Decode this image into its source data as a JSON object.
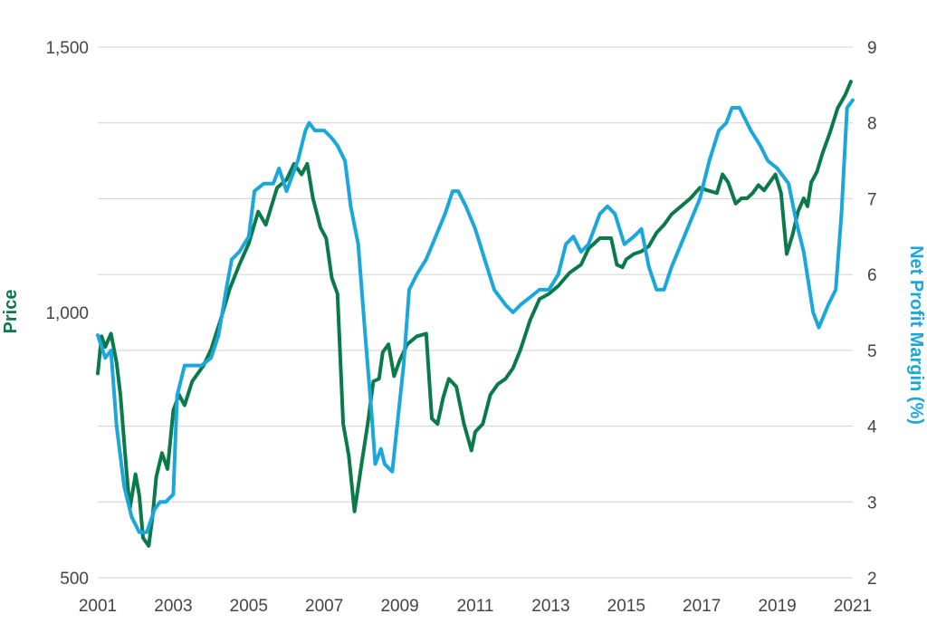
{
  "chart_data": {
    "type": "line",
    "title": "",
    "x_ticks": [
      "2001",
      "2003",
      "2005",
      "2007",
      "2009",
      "2011",
      "2013",
      "2015",
      "2017",
      "2019",
      "2021"
    ],
    "xlim": [
      2001,
      2021
    ],
    "left_axis": {
      "label": "Price",
      "ticks": [
        "500",
        "1,000",
        "1,500"
      ],
      "tick_values": [
        500,
        1000,
        1500
      ],
      "range": [
        500,
        1500
      ],
      "color": "#0b7a4b"
    },
    "right_axis": {
      "label": "Net Profit Margin (%)",
      "ticks": [
        "2",
        "3",
        "4",
        "5",
        "6",
        "7",
        "8",
        "9"
      ],
      "tick_values": [
        2,
        3,
        4,
        5,
        6,
        7,
        8,
        9
      ],
      "range": [
        2,
        9
      ],
      "color": "#1aa7dc"
    },
    "grid": "horizontal",
    "series": [
      {
        "axis": "left",
        "color": "#0b7a4b",
        "x": [
          2001.0,
          2001.1,
          2001.2,
          2001.35,
          2001.5,
          2001.6,
          2001.75,
          2001.85,
          2002.0,
          2002.1,
          2002.2,
          2002.35,
          2002.45,
          2002.55,
          2002.7,
          2002.85,
          2003.0,
          2003.15,
          2003.3,
          2003.5,
          2003.8,
          2004.0,
          2004.25,
          2004.5,
          2004.75,
          2005.0,
          2005.25,
          2005.45,
          2005.6,
          2005.75,
          2006.0,
          2006.2,
          2006.4,
          2006.55,
          2006.7,
          2006.9,
          2007.05,
          2007.2,
          2007.35,
          2007.5,
          2007.65,
          2007.8,
          2008.0,
          2008.15,
          2008.3,
          2008.45,
          2008.55,
          2008.7,
          2008.85,
          2009.0,
          2009.2,
          2009.45,
          2009.7,
          2009.85,
          2010.0,
          2010.15,
          2010.3,
          2010.5,
          2010.7,
          2010.9,
          2011.0,
          2011.2,
          2011.4,
          2011.6,
          2011.8,
          2012.0,
          2012.2,
          2012.45,
          2012.7,
          2012.95,
          2013.2,
          2013.5,
          2013.8,
          2014.0,
          2014.3,
          2014.6,
          2014.75,
          2014.9,
          2015.0,
          2015.2,
          2015.4,
          2015.6,
          2015.8,
          2016.0,
          2016.2,
          2016.45,
          2016.7,
          2016.95,
          2017.15,
          2017.4,
          2017.55,
          2017.7,
          2017.9,
          2018.05,
          2018.2,
          2018.35,
          2018.5,
          2018.65,
          2018.8,
          2018.95,
          2019.1,
          2019.25,
          2019.4,
          2019.55,
          2019.7,
          2019.8,
          2019.9,
          2020.05,
          2020.2,
          2020.4,
          2020.6,
          2020.8,
          2020.95
        ],
        "values": [
          885,
          955,
          935,
          960,
          905,
          845,
          710,
          630,
          695,
          655,
          575,
          560,
          615,
          690,
          735,
          705,
          815,
          845,
          825,
          870,
          900,
          930,
          985,
          1045,
          1090,
          1130,
          1190,
          1165,
          1200,
          1235,
          1250,
          1280,
          1260,
          1280,
          1215,
          1160,
          1140,
          1065,
          1035,
          790,
          730,
          625,
          720,
          790,
          870,
          875,
          925,
          940,
          880,
          910,
          940,
          955,
          960,
          800,
          790,
          840,
          875,
          860,
          790,
          740,
          775,
          790,
          845,
          865,
          875,
          895,
          930,
          985,
          1025,
          1035,
          1050,
          1075,
          1090,
          1120,
          1140,
          1140,
          1090,
          1085,
          1100,
          1110,
          1115,
          1125,
          1150,
          1165,
          1185,
          1200,
          1215,
          1235,
          1230,
          1225,
          1260,
          1245,
          1205,
          1215,
          1215,
          1225,
          1240,
          1230,
          1245,
          1260,
          1225,
          1110,
          1145,
          1190,
          1215,
          1200,
          1245,
          1265,
          1300,
          1340,
          1385,
          1410,
          1435
        ]
      },
      {
        "axis": "right",
        "color": "#1aa7dc",
        "x": [
          2001.0,
          2001.2,
          2001.35,
          2001.5,
          2001.7,
          2001.9,
          2002.1,
          2002.3,
          2002.5,
          2002.65,
          2002.8,
          2003.0,
          2003.1,
          2003.3,
          2003.5,
          2003.75,
          2004.0,
          2004.2,
          2004.4,
          2004.55,
          2004.75,
          2005.0,
          2005.15,
          2005.4,
          2005.65,
          2005.8,
          2006.0,
          2006.3,
          2006.5,
          2006.6,
          2006.75,
          2007.0,
          2007.2,
          2007.35,
          2007.55,
          2007.7,
          2007.9,
          2008.1,
          2008.25,
          2008.35,
          2008.5,
          2008.6,
          2008.8,
          2009.1,
          2009.25,
          2009.45,
          2009.7,
          2009.95,
          2010.2,
          2010.4,
          2010.55,
          2010.75,
          2011.0,
          2011.25,
          2011.5,
          2011.8,
          2012.0,
          2012.2,
          2012.45,
          2012.7,
          2012.95,
          2013.2,
          2013.4,
          2013.6,
          2013.8,
          2014.0,
          2014.3,
          2014.5,
          2014.7,
          2014.95,
          2015.2,
          2015.4,
          2015.6,
          2015.8,
          2016.0,
          2016.2,
          2016.45,
          2016.7,
          2016.95,
          2017.2,
          2017.45,
          2017.65,
          2017.8,
          2018.0,
          2018.3,
          2018.55,
          2018.75,
          2019.0,
          2019.3,
          2019.5,
          2019.7,
          2019.95,
          2020.1,
          2020.35,
          2020.55,
          2020.7,
          2020.85,
          2021.0
        ],
        "values": [
          5.2,
          4.9,
          5.0,
          4.0,
          3.2,
          2.8,
          2.6,
          2.6,
          2.9,
          3.0,
          3.0,
          3.1,
          4.4,
          4.8,
          4.8,
          4.8,
          4.9,
          5.2,
          5.8,
          6.2,
          6.3,
          6.5,
          7.1,
          7.2,
          7.2,
          7.4,
          7.1,
          7.5,
          7.9,
          8.0,
          7.9,
          7.9,
          7.8,
          7.7,
          7.5,
          6.9,
          6.4,
          5.1,
          4.2,
          3.5,
          3.7,
          3.5,
          3.4,
          4.8,
          5.8,
          6.0,
          6.2,
          6.5,
          6.8,
          7.1,
          7.1,
          6.9,
          6.6,
          6.2,
          5.8,
          5.6,
          5.5,
          5.6,
          5.7,
          5.8,
          5.8,
          6.0,
          6.4,
          6.5,
          6.3,
          6.4,
          6.8,
          6.9,
          6.8,
          6.4,
          6.5,
          6.6,
          6.1,
          5.8,
          5.8,
          6.1,
          6.4,
          6.7,
          7.0,
          7.5,
          7.9,
          8.0,
          8.2,
          8.2,
          7.9,
          7.7,
          7.5,
          7.4,
          7.2,
          6.7,
          6.3,
          5.5,
          5.3,
          5.6,
          5.8,
          6.8,
          8.2,
          8.3
        ]
      }
    ]
  }
}
